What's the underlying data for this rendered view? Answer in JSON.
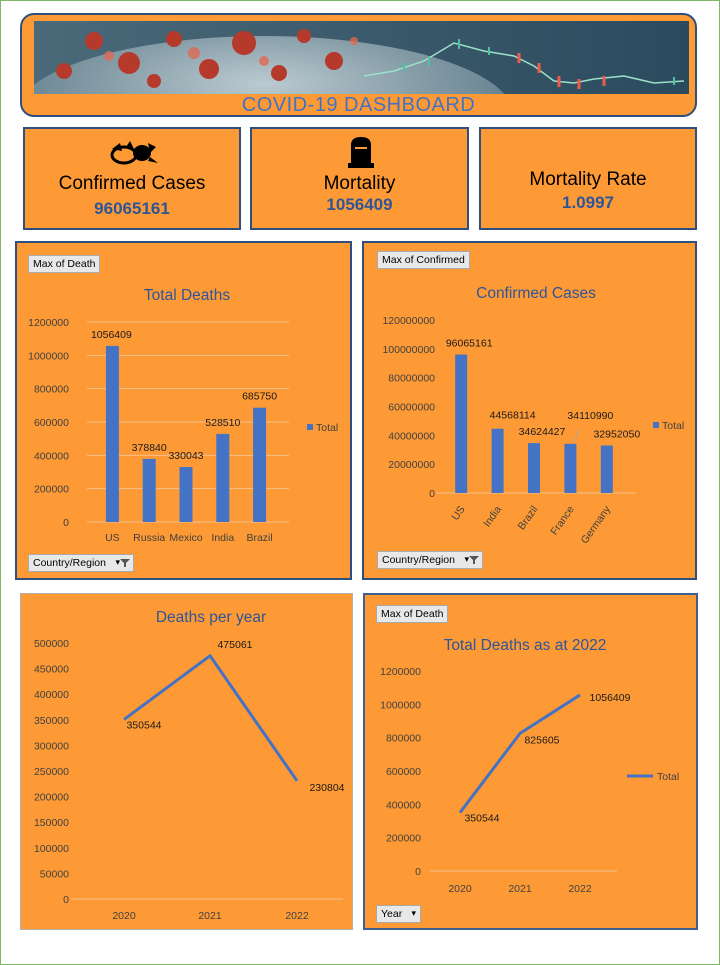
{
  "dashboard": {
    "title": "COVID-19 DASHBOARD"
  },
  "kpis": [
    {
      "label": "Confirmed Cases",
      "value": "96065161",
      "icon": "virus-icon"
    },
    {
      "label": "Mortality",
      "value": "1056409",
      "icon": "tombstone-icon"
    },
    {
      "label": "Mortality Rate",
      "value": "1.0997"
    }
  ],
  "pivot_buttons": {
    "deaths_value_field": "Max of Death",
    "deaths_axis_field": "Country/Region",
    "confirmed_value_field": "Max of Confirmed",
    "confirmed_axis_field": "Country/Region",
    "total_deaths_value_field": "Max of Death",
    "total_deaths_axis_field": "Year"
  },
  "colors": {
    "panel": "#fd9a36",
    "series": "#4472c4",
    "title": "#2f5597",
    "border": "#2f4f7f"
  },
  "chart_data": [
    {
      "type": "bar",
      "title": "Total Deaths",
      "categories": [
        "US",
        "Russia",
        "Mexico",
        "India",
        "Brazil"
      ],
      "series": [
        {
          "name": "Total",
          "values": [
            1056409,
            378840,
            330043,
            528510,
            685750
          ]
        }
      ],
      "ylim": [
        0,
        1200000
      ],
      "yticks": [
        0,
        200000,
        400000,
        600000,
        800000,
        1000000,
        1200000
      ],
      "legend": "right",
      "grid": true
    },
    {
      "type": "bar",
      "title": "Confirmed Cases",
      "categories": [
        "US",
        "India",
        "Brazil",
        "France",
        "Germany"
      ],
      "series": [
        {
          "name": "Total",
          "values": [
            96065161,
            44568114,
            34624427,
            34110990,
            32952050
          ]
        }
      ],
      "ylim": [
        0,
        120000000
      ],
      "yticks": [
        0,
        20000000,
        40000000,
        60000000,
        80000000,
        100000000,
        120000000
      ],
      "legend": "right",
      "grid": false
    },
    {
      "type": "line",
      "title": "Deaths per year",
      "categories": [
        "2020",
        "2021",
        "2022"
      ],
      "series": [
        {
          "values": [
            350544,
            475061,
            230804
          ]
        }
      ],
      "ylim": [
        0,
        500000
      ],
      "yticks": [
        0,
        50000,
        100000,
        150000,
        200000,
        250000,
        300000,
        350000,
        400000,
        450000,
        500000
      ],
      "legend": "none",
      "grid": false
    },
    {
      "type": "line",
      "title": "Total Deaths as at 2022",
      "categories": [
        "2020",
        "2021",
        "2022"
      ],
      "series": [
        {
          "name": "Total",
          "values": [
            350544,
            825605,
            1056409
          ]
        }
      ],
      "ylim": [
        0,
        1200000
      ],
      "yticks": [
        0,
        200000,
        400000,
        600000,
        800000,
        1000000,
        1200000
      ],
      "legend": "right",
      "grid": false
    }
  ]
}
